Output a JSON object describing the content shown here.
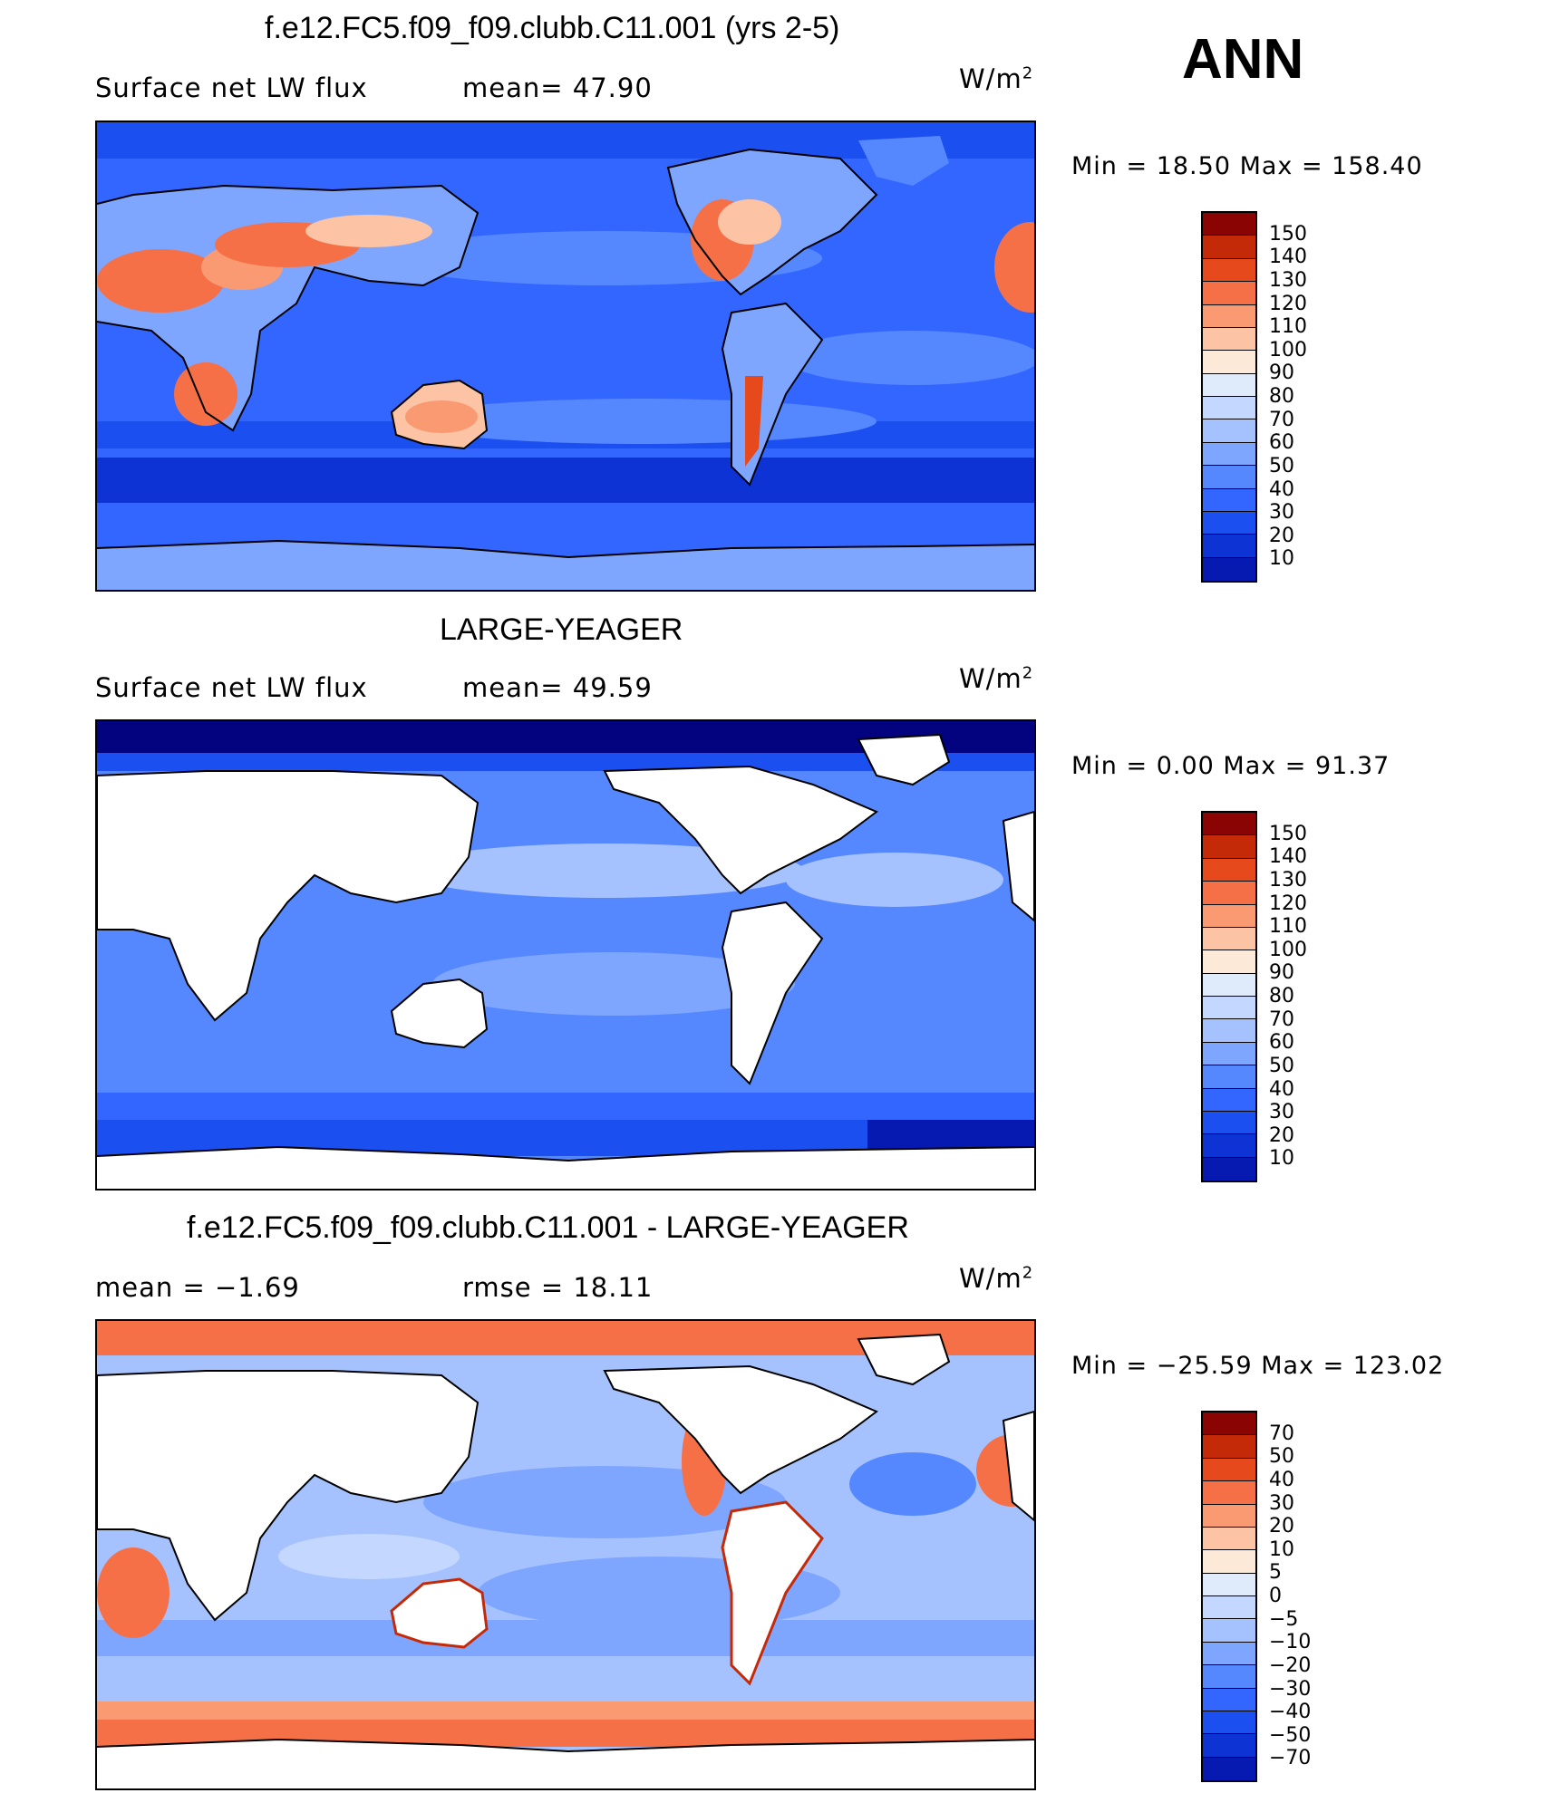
{
  "season": "ANN",
  "colors": {
    "scale": [
      "#030380",
      "#0619b0",
      "#0d33d4",
      "#1c4ff0",
      "#3366ff",
      "#5588ff",
      "#7fa6ff",
      "#a5c2ff",
      "#c4d8ff",
      "#dfeafb",
      "#fde9d8",
      "#fcc3a5",
      "#f99a72",
      "#f57046",
      "#e64a1c",
      "#c42a08",
      "#8a0404"
    ]
  },
  "panels": [
    {
      "id": "model",
      "title": "f.e12.FC5.f09_f09.clubb.C11.001 (yrs 2-5)",
      "left_text": "Surface net LW flux",
      "stat_text": "mean=  47.90",
      "unit_base": "W/m",
      "unit_exp": "2",
      "minmax": "Min =   18.50 Max = 158.40",
      "colorbar_labels": [
        "150",
        "140",
        "130",
        "120",
        "110",
        "100",
        "90",
        "80",
        "70",
        "60",
        "50",
        "40",
        "30",
        "20",
        "10"
      ]
    },
    {
      "id": "obs",
      "title": "LARGE-YEAGER",
      "left_text": "Surface net LW flux",
      "stat_text": "mean=  49.59",
      "unit_base": "W/m",
      "unit_exp": "2",
      "minmax": "Min =    0.00 Max =   91.37",
      "colorbar_labels": [
        "150",
        "140",
        "130",
        "120",
        "110",
        "100",
        "90",
        "80",
        "70",
        "60",
        "50",
        "40",
        "30",
        "20",
        "10"
      ]
    },
    {
      "id": "diff",
      "title": "f.e12.FC5.f09_f09.clubb.C11.001 - LARGE-YEAGER",
      "left_text": "mean =   −1.69",
      "stat_text": "rmse =   18.11",
      "unit_base": "W/m",
      "unit_exp": "2",
      "minmax": "Min = −25.59 Max = 123.02",
      "colorbar_labels": [
        "70",
        "50",
        "40",
        "30",
        "20",
        "10",
        "5",
        "0",
        "−5",
        "−10",
        "−20",
        "−30",
        "−40",
        "−50",
        "−70"
      ]
    }
  ]
}
